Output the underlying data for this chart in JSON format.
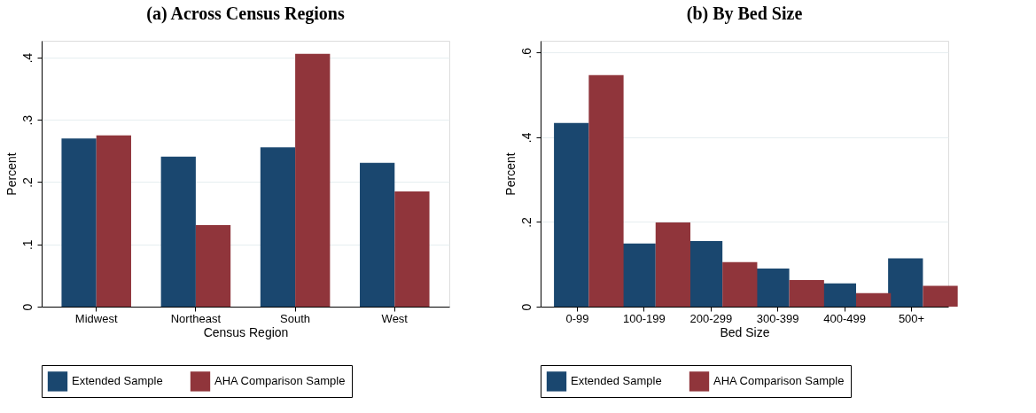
{
  "chart_data": [
    {
      "type": "bar",
      "title": "(a) Across Census Regions",
      "xlabel": "Census Region",
      "ylabel": "Percent",
      "categories": [
        "Midwest",
        "Northeast",
        "South",
        "West"
      ],
      "series": [
        {
          "name": "Extended Sample",
          "color": "#1a476f",
          "values": [
            0.27,
            0.241,
            0.256,
            0.231
          ]
        },
        {
          "name": "AHA Comparison Sample",
          "color": "#90353b",
          "values": [
            0.275,
            0.131,
            0.406,
            0.185
          ]
        }
      ],
      "ylim": [
        0,
        0.427
      ],
      "yticks": [
        {
          "value": 0,
          "label": "0"
        },
        {
          "value": 0.1,
          "label": ".1"
        },
        {
          "value": 0.2,
          "label": ".2"
        },
        {
          "value": 0.3,
          "label": ".3"
        },
        {
          "value": 0.4,
          "label": ".4"
        }
      ],
      "grid": "y",
      "legend": "bottom"
    },
    {
      "type": "bar",
      "title": "(b) By Bed Size",
      "xlabel": "Bed Size",
      "ylabel": "Percent",
      "categories": [
        "0-99",
        "100-199",
        "200-299",
        "300-399",
        "400-499",
        "500+"
      ],
      "series": [
        {
          "name": "Extended Sample",
          "color": "#1a476f",
          "values": [
            0.434,
            0.149,
            0.155,
            0.09,
            0.055,
            0.114
          ]
        },
        {
          "name": "AHA Comparison Sample",
          "color": "#90353b",
          "values": [
            0.547,
            0.199,
            0.105,
            0.063,
            0.032,
            0.049
          ]
        }
      ],
      "ylim": [
        0,
        0.628
      ],
      "yticks": [
        {
          "value": 0,
          "label": "0"
        },
        {
          "value": 0.2,
          "label": ".2"
        },
        {
          "value": 0.4,
          "label": ".4"
        },
        {
          "value": 0.6,
          "label": ".6"
        }
      ],
      "grid": "y",
      "legend": "bottom"
    }
  ]
}
